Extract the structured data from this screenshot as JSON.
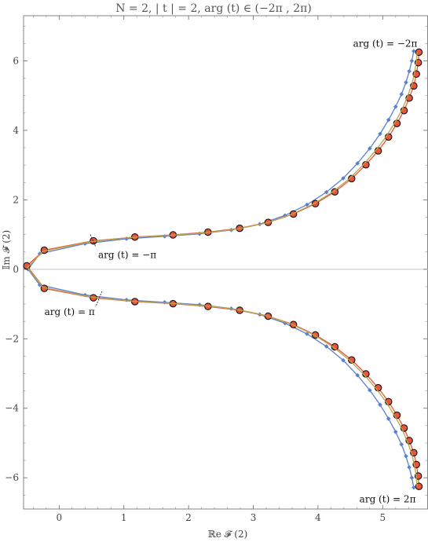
{
  "chart_data": {
    "type": "line",
    "title": "N = 2,  | t | = 2,  arg (t) ∈ (−2π , 2π)",
    "xlabel": "ℝe 𝓕 (2)",
    "ylabel": "𝕀m 𝓕 (2)",
    "xlim": [
      -0.55,
      5.7
    ],
    "ylim": [
      -6.9,
      7.3
    ],
    "xticks": [
      0,
      1,
      2,
      3,
      4,
      5
    ],
    "yticks": [
      -6,
      -4,
      -2,
      0,
      2,
      4,
      6
    ],
    "grid": false,
    "zero_line": true,
    "series": [
      {
        "color": "#5b7fd1",
        "marker": "diamond",
        "x": [
          5.48,
          5.45,
          5.41,
          5.36,
          5.29,
          5.2,
          5.09,
          4.96,
          4.8,
          4.61,
          4.39,
          4.13,
          3.83,
          3.49,
          3.1,
          2.66,
          2.17,
          1.63,
          1.04,
          0.4,
          -0.3,
          -0.48,
          -0.3,
          0.4,
          1.04,
          1.63,
          2.17,
          2.66,
          3.1,
          3.49,
          3.83,
          4.13,
          4.39,
          4.61,
          4.8,
          4.96,
          5.09,
          5.2,
          5.29,
          5.36,
          5.41,
          5.45,
          5.48
        ],
        "y": [
          6.28,
          6.0,
          5.7,
          5.38,
          5.04,
          4.68,
          4.3,
          3.9,
          3.48,
          3.05,
          2.62,
          2.22,
          1.86,
          1.55,
          1.3,
          1.13,
          1.02,
          0.95,
          0.88,
          0.74,
          0.45,
          0,
          -0.45,
          -0.74,
          -0.88,
          -0.95,
          -1.02,
          -1.13,
          -1.3,
          -1.55,
          -1.86,
          -2.22,
          -2.62,
          -3.05,
          -3.48,
          -3.9,
          -4.3,
          -4.68,
          -5.04,
          -5.38,
          -5.7,
          -6.0,
          -6.28
        ]
      },
      {
        "color": "#e8553a",
        "marker": "ringed-circle",
        "x": [
          5.56,
          5.55,
          5.52,
          5.48,
          5.41,
          5.33,
          5.22,
          5.09,
          4.93,
          4.74,
          4.52,
          4.26,
          3.96,
          3.62,
          3.23,
          2.79,
          2.3,
          1.76,
          1.17,
          0.53,
          -0.23,
          -0.5,
          -0.23,
          0.53,
          1.17,
          1.76,
          2.3,
          2.79,
          3.23,
          3.62,
          3.96,
          4.26,
          4.52,
          4.74,
          4.93,
          5.09,
          5.22,
          5.33,
          5.41,
          5.48,
          5.52,
          5.55,
          5.56
        ],
        "y": [
          6.25,
          5.95,
          5.62,
          5.28,
          4.93,
          4.57,
          4.2,
          3.81,
          3.41,
          3.01,
          2.61,
          2.23,
          1.89,
          1.59,
          1.35,
          1.18,
          1.07,
          0.99,
          0.93,
          0.82,
          0.55,
          0.1,
          -0.55,
          -0.82,
          -0.93,
          -0.99,
          -1.07,
          -1.18,
          -1.35,
          -1.59,
          -1.89,
          -2.23,
          -2.61,
          -3.01,
          -3.41,
          -3.81,
          -4.2,
          -4.57,
          -4.93,
          -5.28,
          -5.62,
          -5.95,
          -6.25
        ]
      },
      {
        "color": "#b9a54a",
        "marker": "none",
        "x": [
          5.53,
          5.52,
          5.49,
          5.45,
          5.38,
          5.3,
          5.19,
          5.06,
          4.9,
          4.71,
          4.49,
          4.23,
          3.93,
          3.59,
          3.2,
          2.76,
          2.27,
          1.73,
          1.14,
          0.5,
          -0.25,
          -0.49,
          -0.25,
          0.5,
          1.14,
          1.73,
          2.27,
          2.76,
          3.2,
          3.59,
          3.93,
          4.23,
          4.49,
          4.71,
          4.9,
          5.06,
          5.19,
          5.3,
          5.38,
          5.45,
          5.49,
          5.52,
          5.53
        ],
        "y": [
          6.26,
          5.97,
          5.65,
          5.31,
          4.96,
          4.6,
          4.23,
          3.84,
          3.44,
          3.03,
          2.62,
          2.23,
          1.88,
          1.58,
          1.33,
          1.16,
          1.05,
          0.98,
          0.92,
          0.8,
          0.52,
          0.05,
          -0.52,
          -0.8,
          -0.92,
          -0.98,
          -1.05,
          -1.16,
          -1.33,
          -1.58,
          -1.88,
          -2.23,
          -2.62,
          -3.03,
          -3.44,
          -3.84,
          -4.23,
          -4.6,
          -4.96,
          -5.31,
          -5.65,
          -5.97,
          -6.26
        ]
      }
    ],
    "annotations": [
      {
        "text": "arg (t) = −2π",
        "x": 5.56,
        "y": 6.25,
        "placement": "top-left"
      },
      {
        "text": "arg (t) = −π",
        "x": 0.53,
        "y": 0.82,
        "placement": "bottom-right"
      },
      {
        "text": "arg (t) = π",
        "x": 0.6,
        "y": -0.86,
        "placement": "bottom-left"
      },
      {
        "text": "arg (t) = 2π",
        "x": 5.56,
        "y": -6.25,
        "placement": "bottom-left"
      }
    ]
  }
}
